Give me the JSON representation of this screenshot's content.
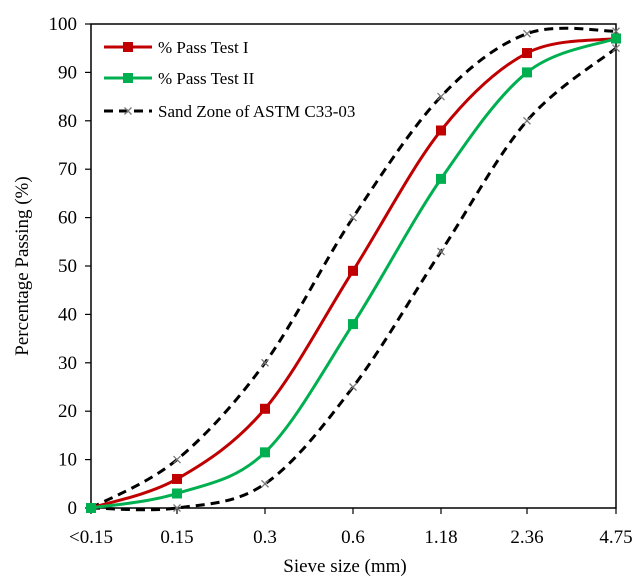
{
  "chart_data": {
    "type": "line",
    "title": "",
    "xlabel": "Sieve size (mm)",
    "ylabel": "Percentage Passing (%)",
    "categories": [
      "<0.15",
      "0.15",
      "0.3",
      "0.6",
      "1.18",
      "2.36",
      "4.75"
    ],
    "ylim": [
      0,
      100
    ],
    "yticks": [
      "0",
      "10",
      "20",
      "30",
      "40",
      "50",
      "60",
      "70",
      "80",
      "90",
      "100"
    ],
    "grid": false,
    "legend_position": "top-left",
    "series": [
      {
        "name": "% Pass Test I",
        "color": "#c00000",
        "marker": "square",
        "line_style": "solid",
        "values": [
          0,
          6,
          20.5,
          49,
          78,
          94,
          97
        ]
      },
      {
        "name": "% Pass Test II",
        "color": "#00b050",
        "marker": "square",
        "line_style": "solid",
        "values": [
          0,
          3,
          11.5,
          38,
          68,
          90,
          97
        ]
      },
      {
        "name": "Sand Zone of ASTM C33-03",
        "color": "#000000",
        "marker": "x",
        "line_style": "dashed",
        "bands": [
          [
            0,
            10,
            30,
            60,
            85,
            98,
            98.5
          ],
          [
            0,
            0,
            5,
            25,
            53,
            80,
            95
          ]
        ]
      }
    ]
  }
}
